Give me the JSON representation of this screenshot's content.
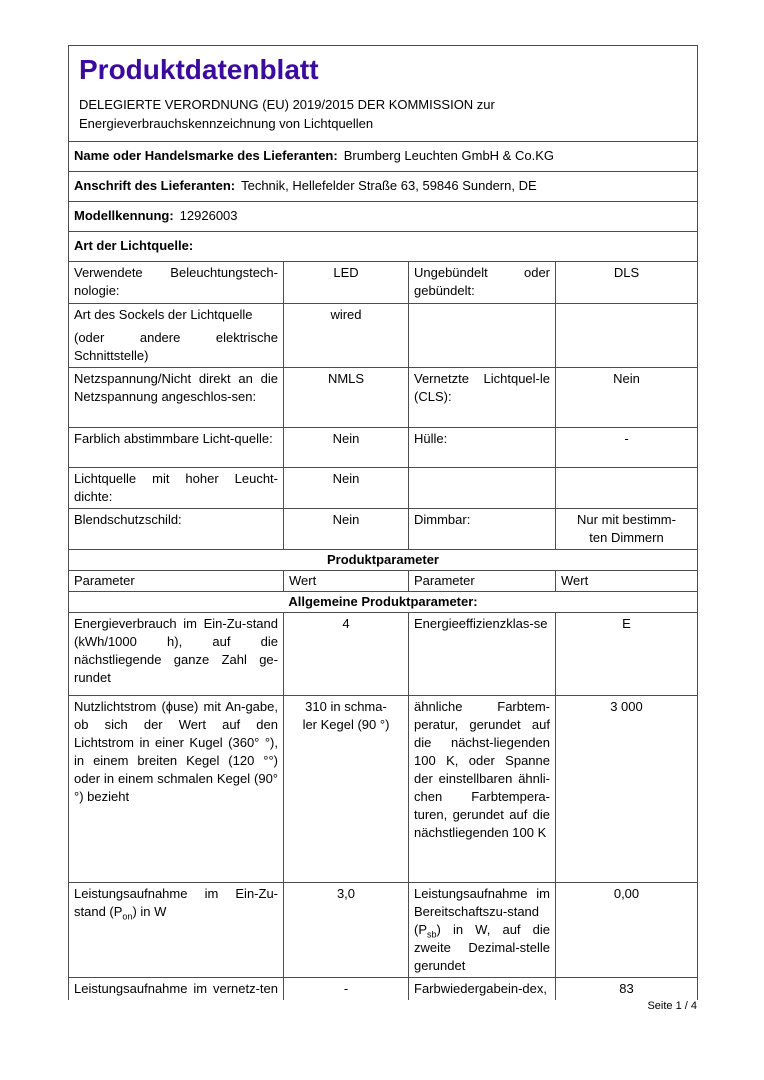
{
  "page": {
    "footer": "Seite 1 / 4"
  },
  "header": {
    "title": "Produktdatenblatt",
    "regulation": "DELEGIERTE VERORDNUNG (EU) 2019/2015 DER KOMMISSION zur\nEnergieverbrauchskennzeichnung von Lichtquellen"
  },
  "info_rows": [
    {
      "label": "Name oder Handelsmarke des Lieferanten:",
      "value": "Brumberg Leuchten GmbH & Co.KG"
    },
    {
      "label": "Anschrift des Lieferanten:",
      "value": "Technik, Hellefelder Straße 63, 59846 Sundern, DE"
    },
    {
      "label": "Modellkennung:",
      "value": "12926003"
    },
    {
      "label": "Art der Lichtquelle:",
      "value": ""
    }
  ],
  "table": {
    "top_rows": [
      {
        "p1": "Verwendete Beleuchtungstech-nologie:",
        "v1": "LED",
        "p2": "Ungebündelt oder gebündelt:",
        "v2": "DLS"
      },
      {
        "p1": "Art des Sockels der Lichtquelle",
        "p1b": "(oder andere elektrische Schnittstelle)",
        "v1": "wired",
        "p2": "",
        "v2": ""
      },
      {
        "p1": "Netzspannung/Nicht direkt an die Netzspannung angeschlos-sen:",
        "v1": "NMLS",
        "p2": "Vernetzte Lichtquel-le (CLS):",
        "v2": "Nein"
      },
      {
        "p1": "Farblich abstimmbare Licht-quelle:",
        "v1": "Nein",
        "p2": "Hülle:",
        "v2": "-"
      },
      {
        "p1": "Lichtquelle mit hoher Leucht-dichte:",
        "v1": "Nein",
        "p2": "",
        "v2": ""
      },
      {
        "p1": "Blendschutzschild:",
        "v1": "Nein",
        "p2": "Dimmbar:",
        "v2": "Nur mit bestimm-\nten Dimmern"
      }
    ],
    "produktparameter_header": "Produktparameter",
    "column_headers": [
      "Parameter",
      "Wert",
      "Parameter",
      "Wert"
    ],
    "allgemeine_header": "Allgemeine Produktparameter:",
    "param_rows": [
      {
        "p1": "Energieverbrauch im Ein-Zu-stand (kWh/1000 h), auf die nächstliegende ganze Zahl ge-rundet",
        "v1": "4",
        "p2": "Energieeffizienzklas-se",
        "v2": "E"
      },
      {
        "p1": "Nutzlichtstrom (ϕuse) mit An-gabe, ob sich der Wert auf den Lichtstrom in einer Kugel (360° °), in einem breiten Kegel (120 °°) oder in einem schmalen Kegel (90° °) bezieht",
        "v1": "310 in schma-\nler Kegel (90 °)",
        "p2": "ähnliche Farbtem-peratur, gerundet auf die nächst-liegenden 100 K, oder Spanne der einstellbaren ähnli-chen Farbtempera-turen, gerundet auf die nächstliegenden 100 K",
        "v2": "3 000"
      },
      {
        "p1": "Leistungsaufnahme im Ein-Zu-stand (P~on~) in W",
        "v1": "3,0",
        "p2": "Leistungsaufnahme im Bereitschaftszu-stand (P~sb~) in W, auf die zweite Dezimal-stelle gerundet",
        "v2": "0,00"
      },
      {
        "p1": "Leistungsaufnahme im vernetz-ten Bereitschaftsbetrieb (P~net~)",
        "v1": "-",
        "p2": "Farbwiedergabein-dex, auf die",
        "v2": "83"
      }
    ]
  }
}
